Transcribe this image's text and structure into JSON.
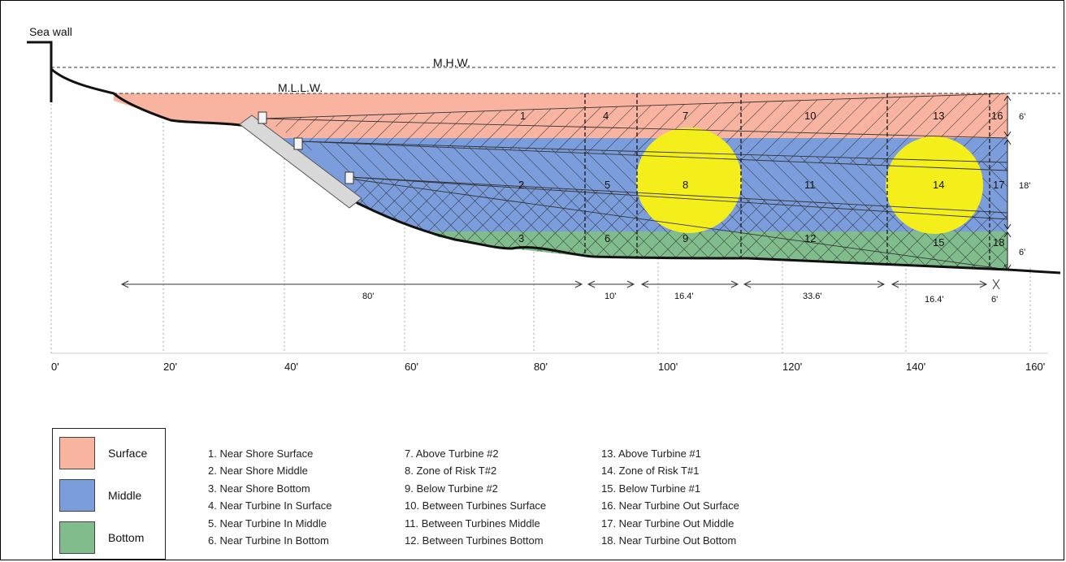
{
  "labels": {
    "sea_wall": "Sea wall",
    "mhw": "M.H.W.",
    "mllw": "M.L.L.W."
  },
  "zone_numbers": [
    "1",
    "2",
    "3",
    "4",
    "5",
    "6",
    "7",
    "8",
    "9",
    "10",
    "11",
    "12",
    "13",
    "14",
    "15",
    "16",
    "17",
    "18"
  ],
  "x_axis_ticks": [
    "0'",
    "20'",
    "40'",
    "60'",
    "80'",
    "100'",
    "120'",
    "140'",
    "160'"
  ],
  "distances": [
    "80'",
    "10'",
    "16.4'",
    "33.6'",
    "16.4'",
    "6'"
  ],
  "depths": [
    "6'",
    "18'",
    "6'"
  ],
  "legend": [
    {
      "label": "Surface",
      "color": "#f8b4a0"
    },
    {
      "label": "Middle",
      "color": "#7b9ddc"
    },
    {
      "label": "Bottom",
      "color": "#80bc8c"
    }
  ],
  "zone_list": [
    [
      "1. Near Shore Surface",
      "2. Near Shore Middle",
      "3. Near Shore Bottom",
      "4. Near Turbine In Surface",
      "5. Near Turbine In Middle",
      "6. Near Turbine In Bottom"
    ],
    [
      "7. Above Turbine #2",
      "8. Zone of Risk T#2",
      "9. Below Turbine #2",
      "10. Between Turbines Surface",
      "11. Between Turbines Middle",
      "12. Between Turbines Bottom"
    ],
    [
      "13. Above Turbine #1",
      "14. Zone of Risk T#1",
      "15. Below Turbine #1",
      "16. Near Turbine Out Surface",
      "17. Near Turbine Out Middle",
      "18. Near Turbine Out Bottom"
    ]
  ],
  "colors": {
    "surface": "#f8b4a0",
    "middle": "#7b9ddc",
    "bottom": "#80bc8c",
    "risk": "#f4ee1a"
  }
}
